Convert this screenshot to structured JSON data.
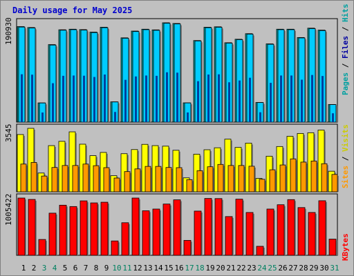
{
  "page": {
    "title": "Daily usage for May 2025"
  },
  "colors": {
    "hits": "#00c0c0",
    "files": "#00a0c0",
    "pages": "#0050a8",
    "visits": "#ffff00",
    "sites": "#ff9900",
    "kbytes": "#ff0000",
    "weekend_label": "#008060",
    "weekday_label": "#000000",
    "panel_bg": "#c0c0c0",
    "grid": "#000000"
  },
  "chart_data": [
    {
      "type": "bar",
      "panel": "hits-files-pages",
      "y_label_max": "190930",
      "ylim": [
        0,
        190930
      ],
      "legend": [
        {
          "name": "Pages",
          "color": "#00a0a0"
        },
        {
          "name": "Files",
          "color": "#0000a0"
        },
        {
          "name": "Hits",
          "color": "#00a0a0"
        }
      ],
      "categories": [
        "1",
        "2",
        "3",
        "4",
        "5",
        "6",
        "7",
        "8",
        "9",
        "10",
        "11",
        "12",
        "13",
        "14",
        "15",
        "16",
        "17",
        "18",
        "19",
        "20",
        "21",
        "22",
        "23",
        "24",
        "25",
        "26",
        "27",
        "28",
        "29",
        "30",
        "31"
      ],
      "weekend_days": [
        "3",
        "4",
        "10",
        "11",
        "17",
        "18",
        "24",
        "25",
        "31"
      ],
      "series": [
        {
          "name": "Hits",
          "values": [
            183600,
            181800,
            37000,
            149000,
            177500,
            178600,
            177800,
            173000,
            182400,
            39000,
            162000,
            175000,
            178600,
            177300,
            190930,
            189600,
            37100,
            156800,
            182400,
            183200,
            152600,
            159300,
            170000,
            37800,
            150400,
            178600,
            178600,
            162600,
            180600,
            176800,
            33900
          ]
        },
        {
          "name": "Files",
          "values": [
            182700,
            180900,
            36800,
            148100,
            176700,
            177700,
            176900,
            172100,
            181500,
            38800,
            161200,
            174100,
            177700,
            176500,
            190000,
            188700,
            36900,
            156000,
            181500,
            182300,
            151800,
            158500,
            169100,
            37600,
            149600,
            177700,
            177700,
            161800,
            179700,
            175900,
            33700
          ]
        },
        {
          "name": "Pages",
          "values": [
            92000,
            91200,
            18500,
            74800,
            89000,
            89600,
            89200,
            86800,
            91500,
            19600,
            81300,
            87800,
            89600,
            89000,
            95800,
            95100,
            18600,
            78700,
            91500,
            91900,
            76600,
            80000,
            85300,
            19000,
            75500,
            89600,
            89600,
            81600,
            90600,
            88700,
            17000
          ]
        }
      ]
    },
    {
      "type": "bar",
      "panel": "visits-sites",
      "y_label_max": "3545",
      "ylim": [
        0,
        3545
      ],
      "legend": [
        {
          "name": "Sites",
          "color": "#ff9900"
        },
        {
          "name": "Visits",
          "color": "#cccc00"
        }
      ],
      "categories": [
        "1",
        "2",
        "3",
        "4",
        "5",
        "6",
        "7",
        "8",
        "9",
        "10",
        "11",
        "12",
        "13",
        "14",
        "15",
        "16",
        "17",
        "18",
        "19",
        "20",
        "21",
        "22",
        "23",
        "24",
        "25",
        "26",
        "27",
        "28",
        "29",
        "30",
        "31"
      ],
      "series": [
        {
          "name": "Visits",
          "values": [
            3200,
            3545,
            1050,
            2580,
            2820,
            3350,
            2660,
            2020,
            2200,
            900,
            2130,
            2360,
            2650,
            2580,
            2550,
            2320,
            780,
            2100,
            2350,
            2460,
            2940,
            2480,
            2720,
            750,
            1990,
            2530,
            3100,
            3260,
            3300,
            3450,
            1150
          ]
        },
        {
          "name": "Sites",
          "values": [
            1550,
            1640,
            880,
            1360,
            1470,
            1470,
            1550,
            1460,
            1350,
            770,
            1130,
            1280,
            1420,
            1420,
            1360,
            1350,
            680,
            1180,
            1400,
            1530,
            1470,
            1470,
            1430,
            700,
            1230,
            1500,
            1840,
            1660,
            1720,
            1570,
            970
          ]
        }
      ]
    },
    {
      "type": "bar",
      "panel": "kbytes",
      "y_label_max": "1005422",
      "ylim": [
        0,
        1005422
      ],
      "legend": [
        {
          "name": "KBytes",
          "color": "#ff0000"
        }
      ],
      "categories": [
        "1",
        "2",
        "3",
        "4",
        "5",
        "6",
        "7",
        "8",
        "9",
        "10",
        "11",
        "12",
        "13",
        "14",
        "15",
        "16",
        "17",
        "18",
        "19",
        "20",
        "21",
        "22",
        "23",
        "24",
        "25",
        "26",
        "27",
        "28",
        "29",
        "30",
        "31"
      ],
      "series": [
        {
          "name": "KBytes",
          "values": [
            1005422,
            981000,
            278000,
            740000,
            880000,
            856000,
            956000,
            920000,
            932000,
            252000,
            572000,
            1005422,
            782000,
            812000,
            900000,
            974000,
            262000,
            776000,
            998000,
            996000,
            680000,
            986000,
            752000,
            158000,
            812000,
            888000,
            978000,
            838000,
            752000,
            958000,
            284000
          ]
        }
      ]
    }
  ]
}
